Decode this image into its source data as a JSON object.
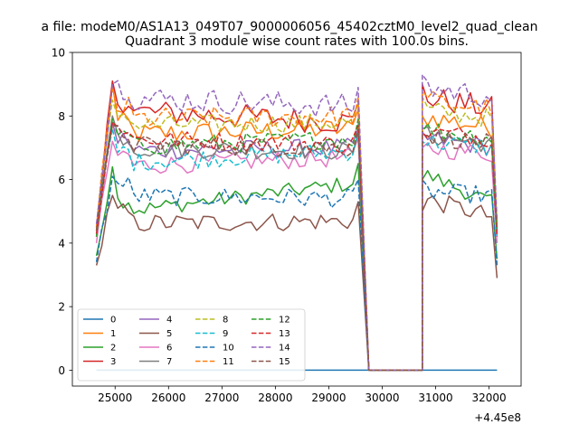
{
  "figure_title": "a file: modeM0/AS1A13_049T07_9000006056_45402cztM0_level2_quad_clean",
  "chart_data": {
    "type": "line",
    "title": "Quadrant 3 module wise count rates with 100.0s bins.",
    "xlabel": "",
    "ylabel": "",
    "x_offset_label": "+4.45e8",
    "xlim": [
      24200,
      32600
    ],
    "ylim": [
      -0.5,
      10
    ],
    "xticks": [
      25000,
      26000,
      27000,
      28000,
      29000,
      30000,
      31000,
      32000
    ],
    "xtick_labels": [
      "25000",
      "26000",
      "27000",
      "28000",
      "29000",
      "30000",
      "31000",
      "32000"
    ],
    "yticks": [
      0,
      2,
      4,
      6,
      8,
      10
    ],
    "ytick_labels": [
      "0",
      "2",
      "4",
      "6",
      "8",
      "10"
    ],
    "grid": false,
    "legend_position": "lower-left",
    "legend_columns": 4,
    "x_segments": [
      {
        "start": 24650,
        "end": 29650,
        "step": 100
      },
      {
        "start": 30750,
        "end": 32150,
        "step": 100
      }
    ],
    "gap_x": [
      29750,
      30650
    ],
    "series": [
      {
        "name": "0",
        "color": "#1f77b4",
        "dash": "solid",
        "flat": 0
      },
      {
        "name": "1",
        "color": "#ff7f0e",
        "dash": "solid",
        "start": 4.4,
        "e1": 9.0,
        "seg1": 7.4,
        "seg1_end": 7.6,
        "rise1": 8.0,
        "seg2": 8.0,
        "seg2_end": 7.6,
        "last": 4.5,
        "noise": 0.35
      },
      {
        "name": "2",
        "color": "#2ca02c",
        "dash": "solid",
        "start": 3.6,
        "e1": 6.4,
        "seg1": 4.9,
        "seg1_end": 5.9,
        "rise1": 6.0,
        "seg2": 6.2,
        "seg2_end": 5.2,
        "last": 3.5,
        "noise": 0.25
      },
      {
        "name": "3",
        "color": "#d62728",
        "dash": "solid",
        "start": 4.2,
        "e1": 9.1,
        "seg1": 8.2,
        "seg1_end": 7.8,
        "rise1": 9.0,
        "seg2": 8.6,
        "seg2_end": 8.2,
        "last": 4.3,
        "noise": 0.4
      },
      {
        "name": "4",
        "color": "#9467bd",
        "dash": "solid",
        "start": 4.5,
        "e1": 7.8,
        "seg1": 6.9,
        "seg1_end": 7.0,
        "rise1": 7.5,
        "seg2": 7.3,
        "seg2_end": 7.0,
        "last": 4.4,
        "noise": 0.3
      },
      {
        "name": "5",
        "color": "#8c564b",
        "dash": "solid",
        "start": 3.3,
        "e1": 5.5,
        "seg1": 4.6,
        "seg1_end": 4.7,
        "rise1": 5.0,
        "seg2": 5.4,
        "seg2_end": 4.8,
        "last": 2.9,
        "noise": 0.3
      },
      {
        "name": "6",
        "color": "#e377c2",
        "dash": "solid",
        "start": 4.0,
        "e1": 7.2,
        "seg1": 6.4,
        "seg1_end": 6.7,
        "rise1": 7.0,
        "seg2": 7.0,
        "seg2_end": 6.8,
        "last": 4.0,
        "noise": 0.3
      },
      {
        "name": "7",
        "color": "#7f7f7f",
        "dash": "solid",
        "start": 4.5,
        "e1": 8.0,
        "seg1": 7.0,
        "seg1_end": 6.9,
        "rise1": 7.6,
        "seg2": 7.4,
        "seg2_end": 7.1,
        "last": 4.6,
        "noise": 0.3
      },
      {
        "name": "8",
        "color": "#bcbd22",
        "dash": "dashed",
        "start": 4.4,
        "e1": 8.5,
        "seg1": 7.7,
        "seg1_end": 7.8,
        "rise1": 8.6,
        "seg2": 8.2,
        "seg2_end": 7.9,
        "last": 4.5,
        "noise": 0.3
      },
      {
        "name": "9",
        "color": "#17becf",
        "dash": "dashed",
        "start": 4.3,
        "e1": 7.6,
        "seg1": 6.5,
        "seg1_end": 6.9,
        "rise1": 7.2,
        "seg2": 7.2,
        "seg2_end": 7.0,
        "last": 4.2,
        "noise": 0.3
      },
      {
        "name": "10",
        "color": "#1f77b4",
        "dash": "dashed",
        "start": 3.4,
        "e1": 6.1,
        "seg1": 5.5,
        "seg1_end": 5.4,
        "rise1": 6.0,
        "seg2": 5.6,
        "seg2_end": 5.5,
        "last": 3.3,
        "noise": 0.3
      },
      {
        "name": "11",
        "color": "#ff7f0e",
        "dash": "dashed",
        "start": 4.5,
        "e1": 8.9,
        "seg1": 7.9,
        "seg1_end": 8.0,
        "rise1": 8.8,
        "seg2": 8.5,
        "seg2_end": 8.2,
        "last": 4.6,
        "noise": 0.35
      },
      {
        "name": "12",
        "color": "#2ca02c",
        "dash": "dashed",
        "start": 4.2,
        "e1": 7.9,
        "seg1": 7.0,
        "seg1_end": 7.3,
        "rise1": 7.5,
        "seg2": 7.6,
        "seg2_end": 7.3,
        "last": 4.4,
        "noise": 0.3
      },
      {
        "name": "13",
        "color": "#d62728",
        "dash": "dashed",
        "start": 4.3,
        "e1": 7.8,
        "seg1": 7.3,
        "seg1_end": 7.1,
        "rise1": 7.5,
        "seg2": 7.5,
        "seg2_end": 7.3,
        "last": 4.2,
        "noise": 0.3
      },
      {
        "name": "14",
        "color": "#9467bd",
        "dash": "dashed",
        "start": 4.6,
        "e1": 9.0,
        "seg1": 8.6,
        "seg1_end": 8.3,
        "rise1": 9.3,
        "seg2": 8.9,
        "seg2_end": 8.6,
        "last": 4.7,
        "noise": 0.4
      },
      {
        "name": "15",
        "color": "#8c564b",
        "dash": "dashed",
        "start": 4.4,
        "e1": 7.7,
        "seg1": 7.1,
        "seg1_end": 7.0,
        "rise1": 7.4,
        "seg2": 7.4,
        "seg2_end": 7.1,
        "last": 4.4,
        "noise": 0.3
      }
    ]
  }
}
